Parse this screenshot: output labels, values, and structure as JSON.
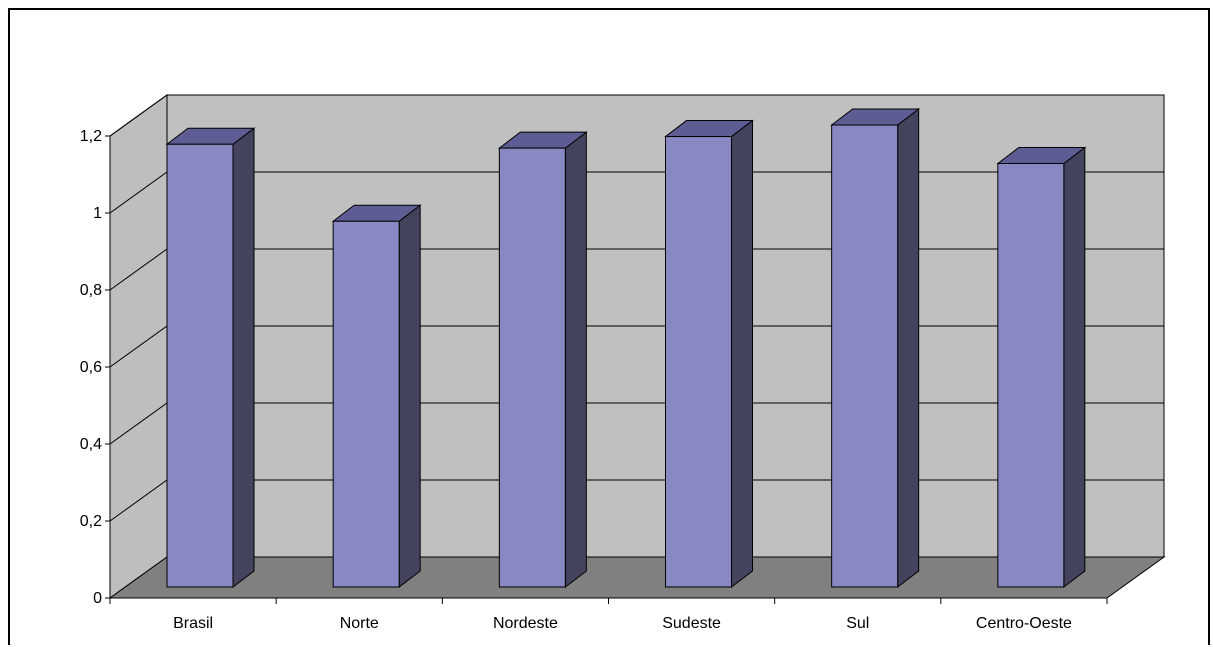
{
  "chart_data": {
    "type": "bar",
    "style": "3d-column",
    "categories": [
      "Brasil",
      "Norte",
      "Nordeste",
      "Sudeste",
      "Sul",
      "Centro-Oeste"
    ],
    "values": [
      1.15,
      0.95,
      1.14,
      1.17,
      1.2,
      1.1
    ],
    "ylim": [
      0,
      1.2
    ],
    "yticks": [
      0,
      0.2,
      0.4,
      0.6,
      0.8,
      1,
      1.2
    ],
    "ytick_labels": [
      "0",
      "0,2",
      "0,4",
      "0,6",
      "0,8",
      "1",
      "1,2"
    ],
    "grid": true,
    "legend": "none",
    "title": "",
    "xlabel": "",
    "ylabel": "",
    "colors": {
      "bar_front": "#8888C2",
      "bar_side": "#43435E",
      "bar_top": "#5D5D93",
      "back_wall": "#C0C0C0",
      "side_wall": "#BEBEBE",
      "floor": "#808080",
      "outline": "#000000"
    }
  }
}
